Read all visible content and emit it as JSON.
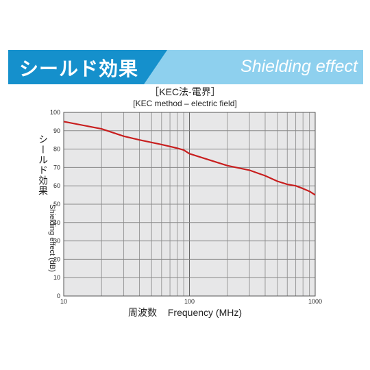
{
  "banner": {
    "title_jp": "シールド効果",
    "title_en": "Shielding effect",
    "colors": {
      "dark": "#1590cc",
      "light": "#8ed0ee"
    }
  },
  "chart_data": {
    "type": "line",
    "title": "［KEC法-電界］",
    "subtitle": "[KEC method – electric field]",
    "xlabel_jp": "周波数",
    "xlabel": "Frequency (MHz)",
    "ylabel_jp": "シールド効果",
    "ylabel": "Shielding effect (dB)",
    "x_scale": "log",
    "xlim": [
      10,
      1000
    ],
    "ylim": [
      0,
      100
    ],
    "x_ticks": [
      10,
      100,
      1000
    ],
    "y_ticks": [
      0,
      10,
      20,
      30,
      40,
      50,
      60,
      70,
      80,
      90,
      100
    ],
    "grid": true,
    "line_color": "#c81e1e",
    "series": [
      {
        "x": [
          10,
          20,
          30,
          40,
          60,
          80,
          90,
          100,
          200,
          300,
          400,
          500,
          600,
          700,
          800,
          900,
          1000
        ],
        "y": [
          95,
          91,
          87,
          85,
          82.5,
          80.5,
          79.5,
          77.5,
          71,
          68.5,
          65.5,
          62.5,
          60.8,
          60,
          58.5,
          57,
          55
        ]
      }
    ]
  }
}
